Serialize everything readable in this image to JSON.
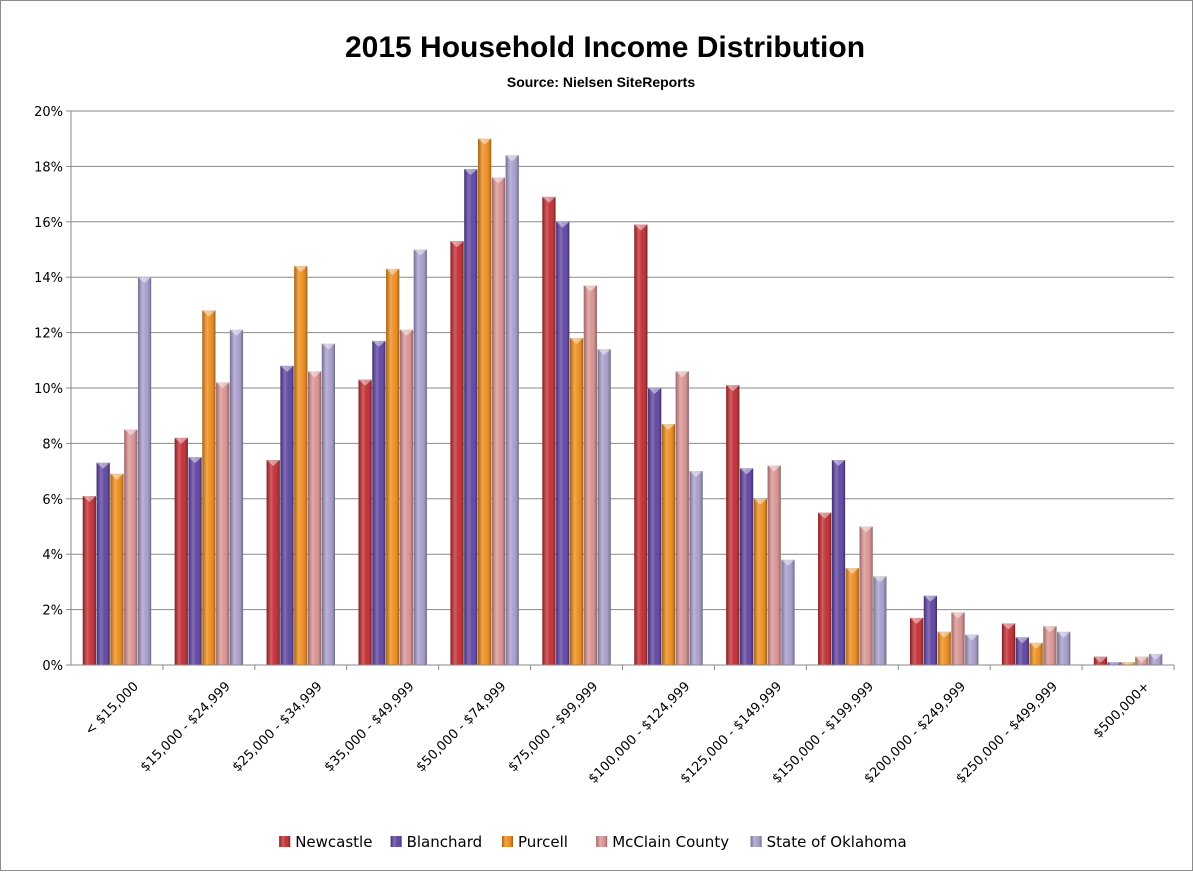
{
  "chart_data": {
    "type": "bar",
    "title": "2015 Household Income Distribution",
    "subtitle": "Source: Nielsen SiteReports",
    "xlabel": "",
    "ylabel": "",
    "ylim": [
      0,
      20
    ],
    "yticks": [
      "0%",
      "2%",
      "4%",
      "6%",
      "8%",
      "10%",
      "12%",
      "14%",
      "16%",
      "18%",
      "20%"
    ],
    "grid": true,
    "legend_position": "bottom",
    "categories": [
      "< $15,000",
      "$15,000 - $24,999",
      "$25,000 - $34,999",
      "$35,000 - $49,999",
      "$50,000 - $74,999",
      "$75,000 - $99,999",
      "$100,000 - $124,999",
      "$125,000 - $149,999",
      "$150,000 - $199,999",
      "$200,000 - $249,999",
      "$250,000 - $499,999",
      "$500,000+"
    ],
    "series": [
      {
        "name": "Newcastle",
        "color": "#c0272d",
        "values": [
          6.1,
          8.2,
          7.4,
          10.3,
          15.3,
          16.9,
          15.9,
          10.1,
          5.5,
          1.7,
          1.5,
          0.3
        ]
      },
      {
        "name": "Blanchard",
        "color": "#5b3fa0",
        "values": [
          7.3,
          7.5,
          10.8,
          11.7,
          17.9,
          16.0,
          10.0,
          7.1,
          7.4,
          2.5,
          1.0,
          0.1
        ]
      },
      {
        "name": "Purcell",
        "color": "#ef8a17",
        "values": [
          6.9,
          12.8,
          14.4,
          14.3,
          19.0,
          11.8,
          8.7,
          6.0,
          3.5,
          1.2,
          0.8,
          0.1
        ]
      },
      {
        "name": "McClain County",
        "color": "#d9918f",
        "values": [
          8.5,
          10.2,
          10.6,
          12.1,
          17.6,
          13.7,
          10.6,
          7.2,
          5.0,
          1.9,
          1.4,
          0.3
        ]
      },
      {
        "name": "State of Oklahoma",
        "color": "#a69bcb",
        "values": [
          14.0,
          12.1,
          11.6,
          15.0,
          18.4,
          11.4,
          7.0,
          3.8,
          3.2,
          1.1,
          1.2,
          0.4
        ]
      }
    ]
  }
}
